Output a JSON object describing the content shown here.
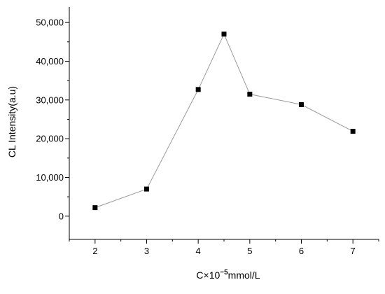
{
  "chart_data": {
    "type": "line",
    "title": "",
    "ylabel": "CL Intensity(a.u)",
    "xlabel_parts": [
      "C×10",
      "−5",
      "mmol/L"
    ],
    "x": [
      2,
      3,
      4,
      4.5,
      5,
      6,
      7
    ],
    "xticks": [
      "2",
      "3",
      "4",
      "5",
      "6",
      "7"
    ],
    "xlim": [
      1.5,
      7.5
    ],
    "yticks": [
      "0",
      "10,000",
      "20,000",
      "30,000",
      "40,000",
      "50,000"
    ],
    "ylim": [
      -6000,
      54000
    ],
    "series": [
      {
        "name": "",
        "marker": "square",
        "color": "#000000",
        "line_color": "#9a9a9a",
        "values": [
          2200,
          7000,
          32700,
          47000,
          31500,
          28800,
          21900
        ]
      }
    ],
    "grid": false,
    "legend": "none"
  }
}
